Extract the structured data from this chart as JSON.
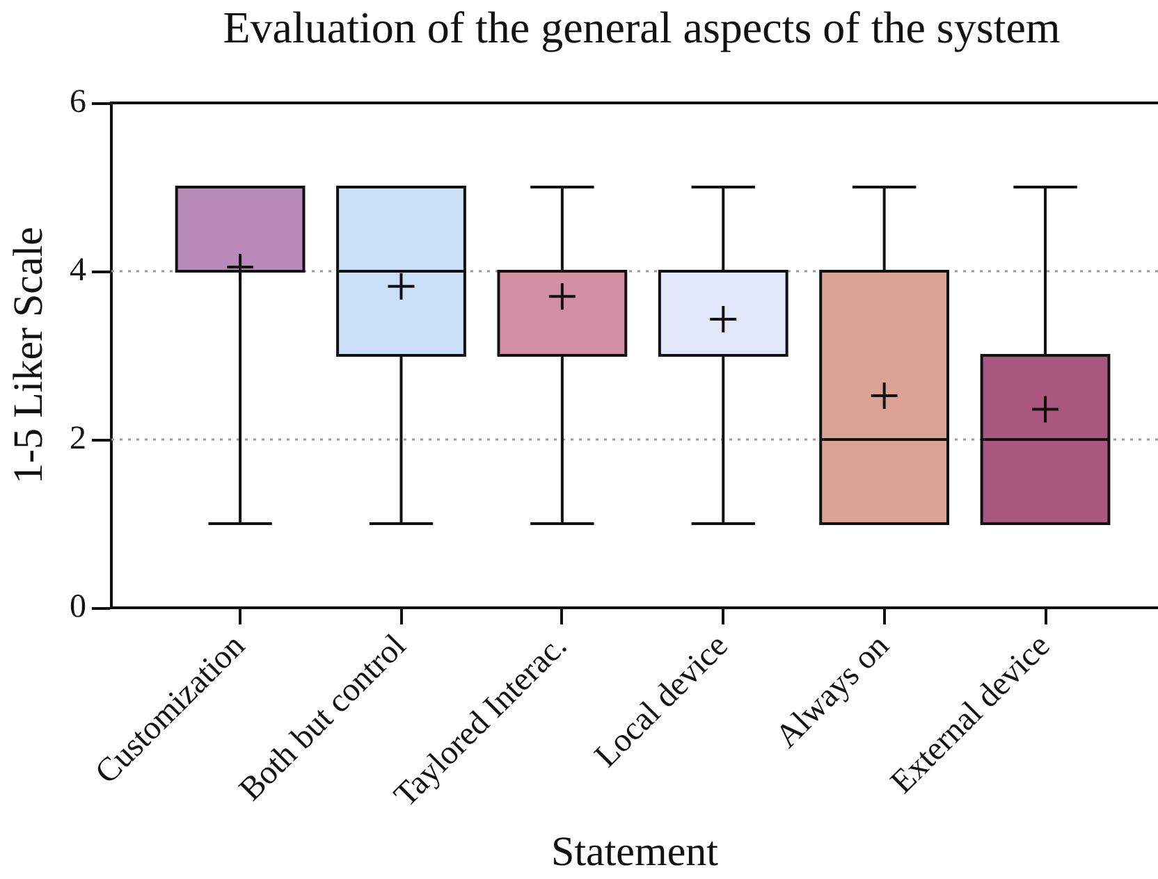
{
  "chart_data": {
    "type": "box",
    "title": "Evaluation of the general aspects of the system",
    "xlabel": "Statement",
    "ylabel": "1-5 Liker Scale",
    "categories": [
      "Customization",
      "Both but control",
      "Taylored Interac.",
      "Local device",
      "Always on",
      "External device"
    ],
    "boxes": [
      {
        "low": 1,
        "q1": 4,
        "median": 4,
        "q3": 5,
        "high": 5,
        "mean": 4.05
      },
      {
        "low": 1,
        "q1": 3,
        "median": 4,
        "q3": 5,
        "high": 5,
        "mean": 3.82
      },
      {
        "low": 1,
        "q1": 3,
        "median": 4,
        "q3": 4,
        "high": 5,
        "mean": 3.7
      },
      {
        "low": 1,
        "q1": 3,
        "median": 4,
        "q3": 4,
        "high": 5,
        "mean": 3.43
      },
      {
        "low": 1,
        "q1": 1,
        "median": 2,
        "q3": 4,
        "high": 5,
        "mean": 2.52
      },
      {
        "low": 1,
        "q1": 1,
        "median": 2,
        "q3": 3,
        "high": 5,
        "mean": 2.36
      }
    ],
    "colors": [
      "#b98ab9",
      "#c9def7",
      "#d390a3",
      "#e2e6f9",
      "#dca394",
      "#a9577f"
    ],
    "ylim": [
      0,
      6
    ],
    "yticks": [
      0,
      2,
      4,
      6
    ],
    "grid": "y",
    "marker": "cross"
  }
}
